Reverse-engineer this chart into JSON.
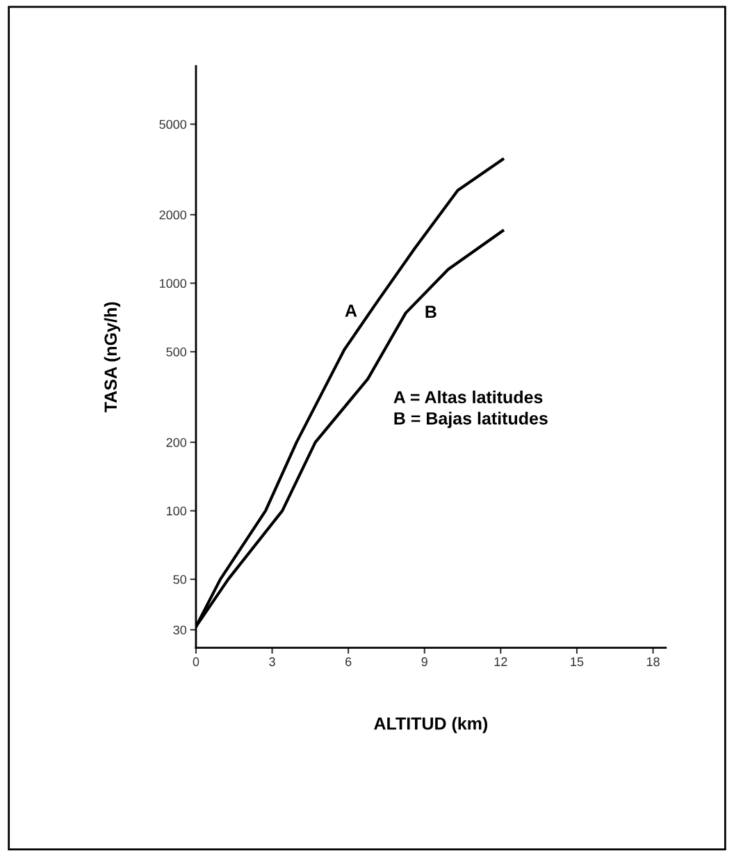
{
  "chart_data": {
    "type": "line",
    "xlabel": "ALTITUD (km)",
    "ylabel": "TASA (nGy/h)",
    "series": [
      {
        "color": "#000000",
        "x": [
          0,
          0.96,
          2.74,
          3.96,
          5.84,
          7.14,
          8.63,
          10.31,
          12.08
        ],
        "values": [
          31,
          50,
          100,
          200,
          510,
          830,
          1430,
          2560,
          3500
        ]
      },
      {
        "color": "#000000",
        "x": [
          0,
          1.27,
          3.4,
          4.7,
          6.77,
          8.26,
          9.93,
          12.08
        ],
        "values": [
          31,
          50,
          100,
          200,
          380,
          740,
          1150,
          1700
        ]
      }
    ],
    "annotations": [
      "A",
      "B",
      "A = Altas latitudes\nB = Bajas latitudes"
    ],
    "log": "y",
    "xlim": [
      0,
      18.5
    ],
    "xticks": [
      0,
      3,
      6,
      9,
      12,
      15,
      18
    ],
    "ylim": [
      25,
      9000
    ],
    "yticks": [
      30,
      50,
      100,
      200,
      500,
      1000,
      2000,
      5000
    ],
    "grid": false,
    "marker": "none",
    "line_style": "solid"
  }
}
